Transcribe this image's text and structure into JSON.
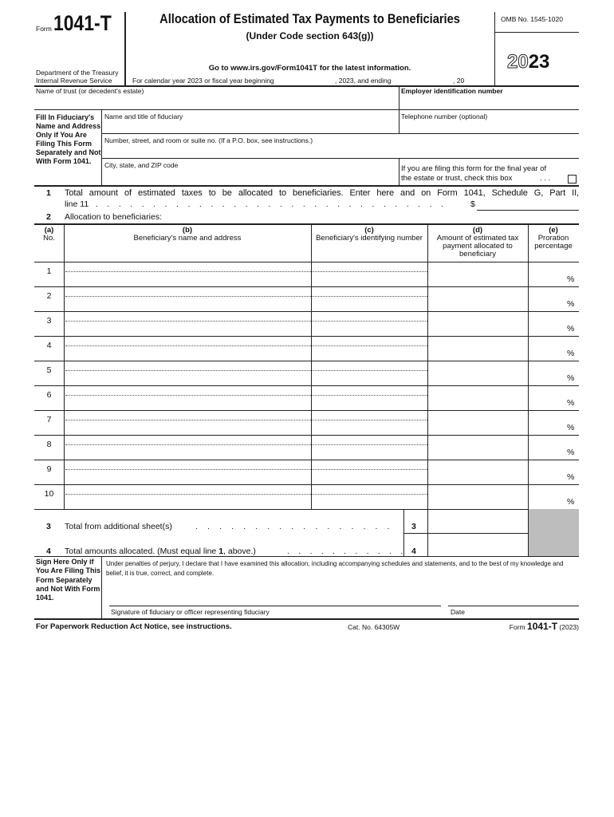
{
  "header": {
    "form_label": "Form",
    "form_number": "1041-T",
    "dept": "Department of the Treasury",
    "irs": "Internal Revenue Service",
    "title": "Allocation of Estimated Tax Payments to Beneficiaries",
    "subtitle": "(Under Code section 643(g))",
    "goto": "Go to www.irs.gov/Form1041T for the latest information.",
    "calendar": "For calendar year 2023 or fiscal year beginning",
    "and_ending": ", 2023, and ending",
    "comma20": ", 20",
    "omb": "OMB No. 1545-1020",
    "year_outline": "20",
    "year_bold": "23"
  },
  "fields": {
    "trust_name": "Name of trust (or decedent's estate)",
    "ein": "Employer identification number",
    "side_label": "Fill In Fiduciary's Name and Address Only if You Are Filing This Form Separately and Not With Form 1041.",
    "fiduciary_name": "Name and title of fiduciary",
    "telephone": "Telephone number (optional)",
    "street": "Number, street, and room or suite no. (If a P.O. box, see instructions.)",
    "city": "City, state, and ZIP code",
    "final_year_1": "If you are filing this form for the final year of",
    "final_year_2": "the estate or trust, check this box",
    "final_dots": ". . ."
  },
  "line1": {
    "num": "1",
    "text": "Total amount of estimated taxes to be allocated to beneficiaries. Enter here and on Form 1041, Schedule G, Part II,",
    "text2": "line 11",
    "dots": ". . . . . . . . . . . . . . . . . . . . . . . . . . . . . . .",
    "dollar": "$"
  },
  "line2": {
    "num": "2",
    "text": "Allocation to beneficiaries:"
  },
  "table": {
    "headers": [
      {
        "letter": "(a)",
        "label": "No."
      },
      {
        "letter": "(b)",
        "label": "Beneficiary's name and address"
      },
      {
        "letter": "(c)",
        "label": "Beneficiary's identifying number"
      },
      {
        "letter": "(d)",
        "label": "Amount of estimated tax payment allocated to beneficiary"
      },
      {
        "letter": "(e)",
        "label": "Proration percentage"
      }
    ],
    "rows": [
      "1",
      "2",
      "3",
      "4",
      "5",
      "6",
      "7",
      "8",
      "9",
      "10"
    ],
    "percent": "%"
  },
  "line3": {
    "num": "3",
    "text": "Total from additional sheet(s)",
    "dots": ". . . . . . . . . . . . . . . . .",
    "box": "3"
  },
  "line4": {
    "num": "4",
    "text_a": "Total amounts allocated. (Must equal line ",
    "text_b": "1",
    "text_c": ", above.)",
    "dots": ". . . . . . . . . . .",
    "box": "4"
  },
  "sign": {
    "label": "Sign Here Only if You Are Filing This Form Separately and Not With Form 1041.",
    "declaration": "Under penalties of perjury, I declare that I have examined this allocation, including accompanying schedules and statements, and to the best of my knowledge and belief, it is true, correct, and complete.",
    "signature_label": "Signature of fiduciary or officer representing fiduciary",
    "date_label": "Date"
  },
  "footer": {
    "paperwork": "For Paperwork Reduction Act Notice, see instructions.",
    "cat": "Cat. No. 64305W",
    "form_label": "Form",
    "form_number": "1041-T",
    "year": "(2023)"
  }
}
